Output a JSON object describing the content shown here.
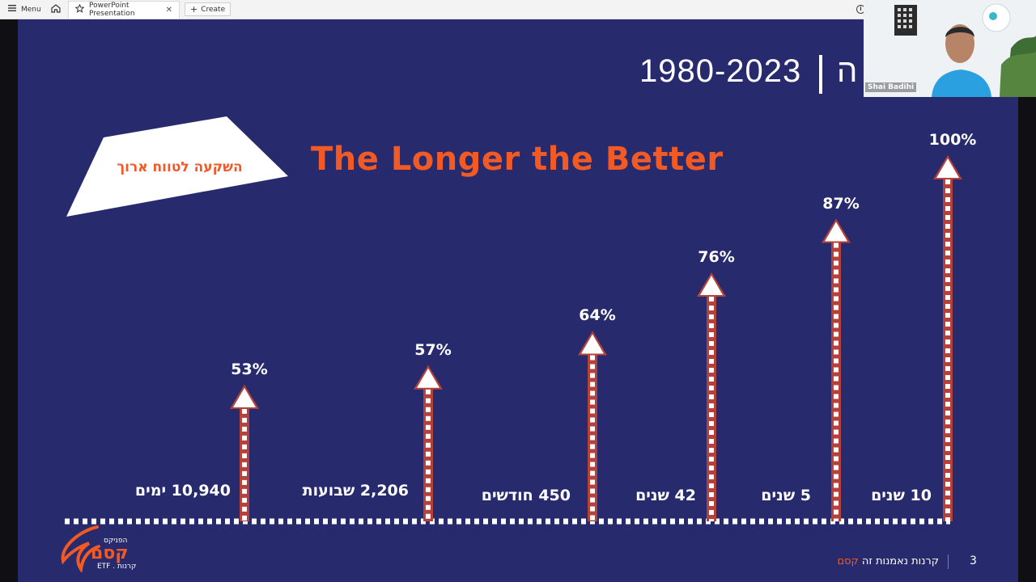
{
  "browser": {
    "menu_label": "Menu",
    "tab_title": "PowerPoint Presentation",
    "create_label": "Create"
  },
  "slide": {
    "year_range": "1980-2023",
    "title_hebrew_fragment": "ה",
    "badge": "השקעה לטווח ארוך",
    "headline": "The Longer the Better",
    "footer_page": "3",
    "footer_text_plain": "קרנות נאמנות זה ",
    "footer_text_accent": "קסם",
    "logo_top": "הפניקס",
    "logo_main": "קסם",
    "logo_sub": "קרנות . ETF"
  },
  "webcam": {
    "participant_name": "Shai Badihi"
  },
  "colors": {
    "slide_bg": "#282a6e",
    "accent": "#f15a24",
    "arrow_glow": "#b4423a",
    "text": "#ffffff"
  },
  "chart_data": {
    "type": "bar",
    "title": "The Longer the Better",
    "categories": [
      "10,940 ימים",
      "2,206 שבועות",
      "450 חודשים",
      "42 שנים",
      "5 שנים",
      "10 שנים"
    ],
    "values": [
      53,
      57,
      64,
      76,
      87,
      100
    ],
    "value_labels": [
      "53%",
      "57%",
      "64%",
      "76%",
      "87%",
      "100%"
    ],
    "ylim": [
      0,
      100
    ],
    "grid": false
  }
}
